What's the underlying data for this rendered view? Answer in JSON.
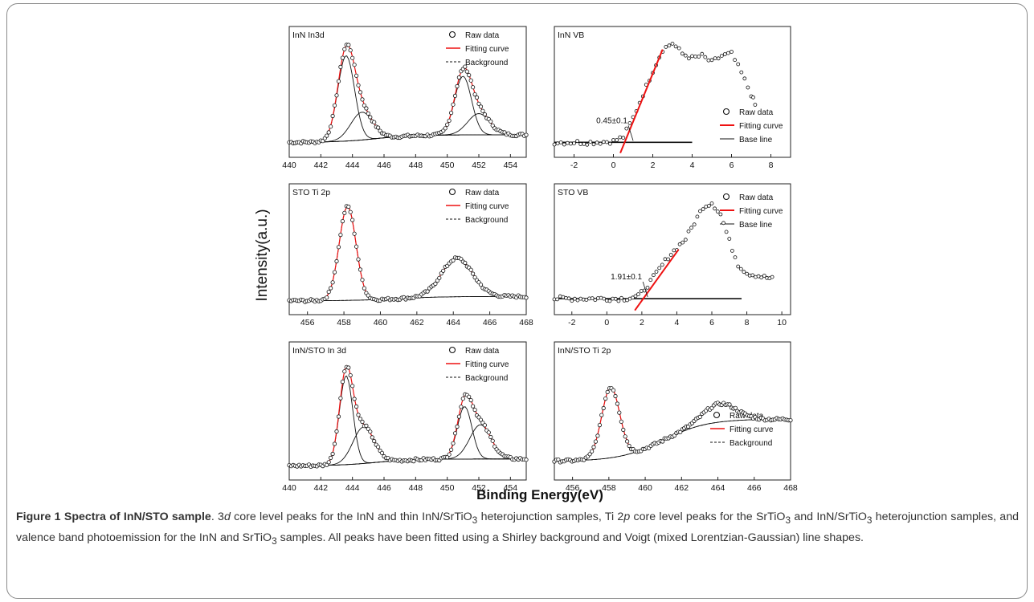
{
  "figure": {
    "y_axis_label": "Intensity(a.u.)",
    "x_axis_label": "Binding Energy(eV)"
  },
  "caption": {
    "title": "Figure 1 Spectra of InN/STO sample",
    "text_parts": [
      ". 3",
      "d",
      " core level peaks for the InN and thin InN/SrTiO",
      "3",
      " heterojunction samples, Ti 2",
      "p",
      " core level peaks for the SrTiO",
      "3",
      " and InN/SrTiO",
      "3",
      " heterojunction samples, and valence band photoemission for the InN and SrTiO",
      "3",
      " samples. All peaks have been fitted using a Shirley background and Voigt (mixed Lorentzian-Gaussian) line shapes."
    ]
  },
  "chart_data": [
    {
      "type": "scatter",
      "label": "InN In3d",
      "xlim": [
        440,
        455
      ],
      "xticks": [
        440,
        442,
        444,
        446,
        448,
        450,
        452,
        454
      ],
      "legend": [
        "Raw data",
        "Fitting curve",
        "Background"
      ],
      "peaks": [
        {
          "center": 443.6,
          "amplitude": 0.8,
          "width": 0.75
        },
        {
          "center": 444.6,
          "amplitude": 0.26,
          "width": 1.0
        },
        {
          "center": 451.0,
          "amplitude": 0.55,
          "width": 0.75
        },
        {
          "center": 452.0,
          "amplitude": 0.2,
          "width": 1.0
        }
      ],
      "background": {
        "start": 0.05,
        "end": 0.12,
        "step_at": 445.5
      }
    },
    {
      "type": "scatter",
      "label": "InN VB",
      "xlim": [
        -3,
        9
      ],
      "xticks": [
        -2,
        0,
        2,
        4,
        6,
        8
      ],
      "legend": [
        "Raw data",
        "Fitting curve",
        "Base line"
      ],
      "annotation": "0.45±0.1",
      "raw_points": [
        [
          -3,
          0.05
        ],
        [
          -2,
          0.05
        ],
        [
          -1,
          0.05
        ],
        [
          0,
          0.06
        ],
        [
          0.5,
          0.1
        ],
        [
          1,
          0.28
        ],
        [
          1.5,
          0.5
        ],
        [
          2,
          0.72
        ],
        [
          2.5,
          0.92
        ],
        [
          3,
          0.98
        ],
        [
          3.5,
          0.88
        ],
        [
          4,
          0.84
        ],
        [
          4.5,
          0.86
        ],
        [
          5,
          0.8
        ],
        [
          5.5,
          0.86
        ],
        [
          6,
          0.88
        ],
        [
          6.5,
          0.7
        ],
        [
          7,
          0.5
        ],
        [
          7.3,
          0.35
        ]
      ],
      "fit_line": [
        [
          0.35,
          -0.05
        ],
        [
          2.5,
          0.92
        ]
      ],
      "base_line": [
        [
          -3,
          0.05
        ],
        [
          4,
          0.05
        ]
      ]
    },
    {
      "type": "scatter",
      "label": "STO Ti 2p",
      "xlim": [
        455,
        468
      ],
      "xticks": [
        456,
        458,
        460,
        462,
        464,
        466,
        468
      ],
      "legend": [
        "Raw data",
        "Fitting curve",
        "Background"
      ],
      "peaks": [
        {
          "center": 458.2,
          "amplitude": 0.88,
          "width": 0.65
        },
        {
          "center": 464.2,
          "amplitude": 0.36,
          "width": 1.2
        }
      ],
      "background": {
        "start": 0.04,
        "end": 0.08,
        "step_at": 461.0
      }
    },
    {
      "type": "scatter",
      "label": "STO VB",
      "xlim": [
        -3,
        10.5
      ],
      "xticks": [
        -2,
        0,
        2,
        4,
        6,
        8,
        10
      ],
      "legend": [
        "Raw data",
        "Fitting curve",
        "Base line"
      ],
      "annotation": "1.91±0.1",
      "raw_points": [
        [
          -3,
          0.06
        ],
        [
          -1,
          0.06
        ],
        [
          1,
          0.06
        ],
        [
          1.8,
          0.08
        ],
        [
          2.5,
          0.22
        ],
        [
          3.5,
          0.45
        ],
        [
          4.5,
          0.62
        ],
        [
          5.5,
          0.92
        ],
        [
          6,
          0.96
        ],
        [
          6.5,
          0.85
        ],
        [
          7,
          0.6
        ],
        [
          7.5,
          0.38
        ],
        [
          8,
          0.3
        ],
        [
          9,
          0.26
        ],
        [
          9.6,
          0.24
        ]
      ],
      "fit_line": [
        [
          1.6,
          -0.05
        ],
        [
          4.1,
          0.52
        ]
      ],
      "base_line": [
        [
          -3,
          0.06
        ],
        [
          7.7,
          0.06
        ]
      ]
    },
    {
      "type": "scatter",
      "label": "InN/STO In 3d",
      "xlim": [
        440,
        455
      ],
      "xticks": [
        440,
        442,
        444,
        446,
        448,
        450,
        452,
        454
      ],
      "legend": [
        "Raw data",
        "Fitting curve",
        "Background"
      ],
      "peaks": [
        {
          "center": 443.6,
          "amplitude": 0.78,
          "width": 0.6
        },
        {
          "center": 444.7,
          "amplitude": 0.32,
          "width": 0.95
        },
        {
          "center": 451.1,
          "amplitude": 0.46,
          "width": 0.65
        },
        {
          "center": 452.1,
          "amplitude": 0.3,
          "width": 0.95
        }
      ],
      "background": {
        "start": 0.04,
        "end": 0.1,
        "step_at": 445.5
      }
    },
    {
      "type": "scatter",
      "label": "InN/STO Ti 2p",
      "xlim": [
        455,
        468
      ],
      "xticks": [
        456,
        458,
        460,
        462,
        464,
        466,
        468
      ],
      "legend": [
        "Raw data",
        "Fitting curve",
        "Background"
      ],
      "peaks": [
        {
          "center": 458.1,
          "amplitude": 0.62,
          "width": 0.7
        },
        {
          "center": 464.1,
          "amplitude": 0.16,
          "width": 1.3
        }
      ],
      "background": {
        "start": 0.08,
        "end": 0.45,
        "step_at": 461.0
      }
    }
  ]
}
